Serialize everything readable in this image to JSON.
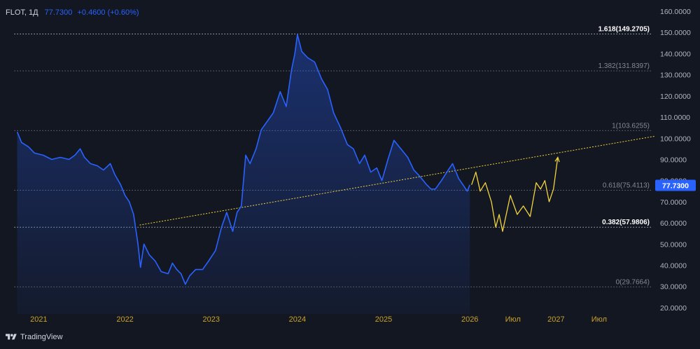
{
  "header": {
    "symbol": "FLOT, 1Д",
    "price": "77.7300",
    "change": "+0.4600 (+0.60%)"
  },
  "branding": {
    "name": "TradingView"
  },
  "chart_data": {
    "type": "line",
    "title": "FLOT, 1Д",
    "price_color": "#2962ff",
    "projection_color": "#f2d43c",
    "last_price_label": "77.7300",
    "y_ticks": [
      "160.0000",
      "150.0000",
      "140.0000",
      "130.0000",
      "120.0000",
      "110.0000",
      "100.0000",
      "90.0000",
      "80.0000",
      "70.0000",
      "60.0000",
      "50.0000",
      "40.0000",
      "30.0000",
      "20.0000"
    ],
    "y_tick_values": [
      160,
      150,
      140,
      130,
      120,
      110,
      100,
      90,
      80,
      70,
      60,
      50,
      40,
      30,
      20
    ],
    "ylim": [
      17,
      162
    ],
    "x_ticks": [
      {
        "label": "2021",
        "t": 2021.0
      },
      {
        "label": "2022",
        "t": 2022.0
      },
      {
        "label": "2023",
        "t": 2023.0
      },
      {
        "label": "2024",
        "t": 2024.0
      },
      {
        "label": "2025",
        "t": 2025.0
      },
      {
        "label": "2026",
        "t": 2026.0
      },
      {
        "label": "Июл",
        "t": 2026.5
      },
      {
        "label": "2027",
        "t": 2027.0
      },
      {
        "label": "Июл",
        "t": 2027.5
      }
    ],
    "xlim": [
      2020.55,
      2028.15
    ],
    "fib_levels": [
      {
        "label": "1.618(149.2705)",
        "value": 149.2705,
        "bold": true
      },
      {
        "label": "1.382(131.8397)",
        "value": 131.8397,
        "bold": false
      },
      {
        "label": "1(103.6255)",
        "value": 103.6255,
        "bold": false
      },
      {
        "label": "0.618(75.4113)",
        "value": 75.4113,
        "bold": false
      },
      {
        "label": "0.382(57.9806)",
        "value": 57.9806,
        "bold": true
      },
      {
        "label": "0(29.7664)",
        "value": 29.7664,
        "bold": false
      }
    ],
    "trendline": {
      "x": [
        2022.17,
        2028.15
      ],
      "y": [
        59,
        101
      ]
    },
    "series": [
      {
        "values": [
          [
            2020.75,
            103
          ],
          [
            2020.8,
            98
          ],
          [
            2020.88,
            96
          ],
          [
            2020.95,
            93
          ],
          [
            2021.05,
            92
          ],
          [
            2021.15,
            90
          ],
          [
            2021.25,
            91
          ],
          [
            2021.35,
            90
          ],
          [
            2021.42,
            92
          ],
          [
            2021.48,
            95
          ],
          [
            2021.53,
            91
          ],
          [
            2021.6,
            88
          ],
          [
            2021.68,
            87
          ],
          [
            2021.75,
            85
          ],
          [
            2021.83,
            88
          ],
          [
            2021.88,
            83
          ],
          [
            2021.95,
            78
          ],
          [
            2022.0,
            73
          ],
          [
            2022.05,
            70
          ],
          [
            2022.1,
            64
          ],
          [
            2022.15,
            50
          ],
          [
            2022.18,
            39
          ],
          [
            2022.22,
            50
          ],
          [
            2022.28,
            45
          ],
          [
            2022.35,
            42
          ],
          [
            2022.42,
            37
          ],
          [
            2022.5,
            36
          ],
          [
            2022.55,
            41
          ],
          [
            2022.6,
            38
          ],
          [
            2022.65,
            36
          ],
          [
            2022.7,
            31
          ],
          [
            2022.75,
            35
          ],
          [
            2022.82,
            38
          ],
          [
            2022.9,
            38
          ],
          [
            2022.97,
            42
          ],
          [
            2023.05,
            47
          ],
          [
            2023.12,
            58
          ],
          [
            2023.18,
            65
          ],
          [
            2023.25,
            56
          ],
          [
            2023.3,
            65
          ],
          [
            2023.35,
            68
          ],
          [
            2023.4,
            92
          ],
          [
            2023.45,
            88
          ],
          [
            2023.52,
            95
          ],
          [
            2023.58,
            104
          ],
          [
            2023.65,
            108
          ],
          [
            2023.72,
            112
          ],
          [
            2023.8,
            122
          ],
          [
            2023.87,
            115
          ],
          [
            2023.93,
            132
          ],
          [
            2023.97,
            140
          ],
          [
            2024.0,
            149
          ],
          [
            2024.05,
            141
          ],
          [
            2024.12,
            138
          ],
          [
            2024.2,
            136
          ],
          [
            2024.28,
            128
          ],
          [
            2024.35,
            123
          ],
          [
            2024.42,
            112
          ],
          [
            2024.5,
            105
          ],
          [
            2024.58,
            97
          ],
          [
            2024.65,
            95
          ],
          [
            2024.72,
            88
          ],
          [
            2024.78,
            92
          ],
          [
            2024.85,
            84
          ],
          [
            2024.92,
            86
          ],
          [
            2024.98,
            80
          ],
          [
            2025.05,
            90
          ],
          [
            2025.12,
            99
          ],
          [
            2025.2,
            95
          ],
          [
            2025.28,
            91
          ],
          [
            2025.35,
            85
          ],
          [
            2025.42,
            82
          ],
          [
            2025.5,
            78
          ],
          [
            2025.55,
            76
          ],
          [
            2025.6,
            76
          ],
          [
            2025.67,
            80
          ],
          [
            2025.75,
            85
          ],
          [
            2025.8,
            88
          ],
          [
            2025.87,
            81
          ],
          [
            2025.92,
            78
          ],
          [
            2025.97,
            75
          ],
          [
            2026.0,
            78
          ]
        ]
      },
      {
        "values": [
          [
            2026.02,
            78
          ],
          [
            2026.07,
            84
          ],
          [
            2026.12,
            75
          ],
          [
            2026.18,
            79
          ],
          [
            2026.25,
            70
          ],
          [
            2026.3,
            58
          ],
          [
            2026.34,
            64
          ],
          [
            2026.38,
            56
          ],
          [
            2026.47,
            73
          ],
          [
            2026.55,
            64
          ],
          [
            2026.62,
            68
          ],
          [
            2026.7,
            63
          ],
          [
            2026.77,
            79
          ],
          [
            2026.82,
            76
          ],
          [
            2026.87,
            80
          ],
          [
            2026.92,
            70
          ],
          [
            2026.97,
            76
          ],
          [
            2027.02,
            91
          ]
        ]
      }
    ]
  }
}
